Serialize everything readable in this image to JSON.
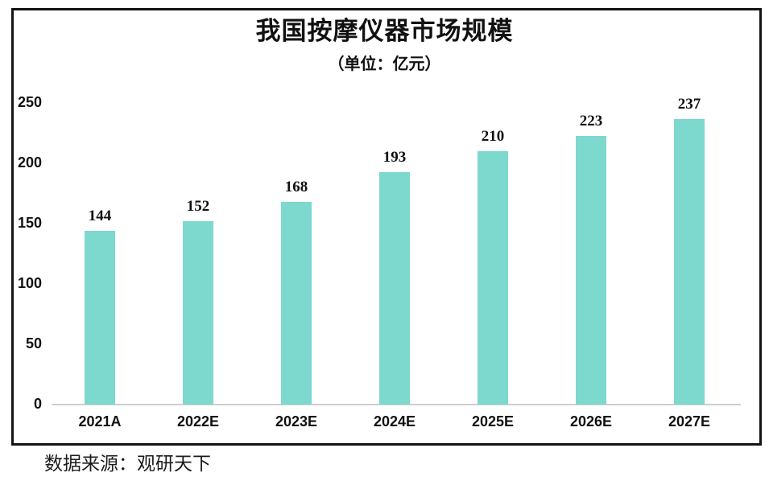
{
  "chart_data": {
    "type": "bar",
    "title": "我国按摩仪器市场规模",
    "subtitle": "（单位：亿元）",
    "categories": [
      "2021A",
      "2022E",
      "2023E",
      "2024E",
      "2025E",
      "2026E",
      "2027E"
    ],
    "values": [
      144,
      152,
      168,
      193,
      210,
      223,
      237
    ],
    "yticks": [
      250,
      200,
      150,
      100,
      50,
      0
    ],
    "ylim": [
      0,
      250
    ],
    "grid": false,
    "legend": false,
    "data_labels": true,
    "bar_color": "#7DD8CD",
    "axis_line_color": "#CFCFCF",
    "frame_color": "#141414",
    "text_color": "#111111",
    "source": "数据来源：观研天下"
  }
}
